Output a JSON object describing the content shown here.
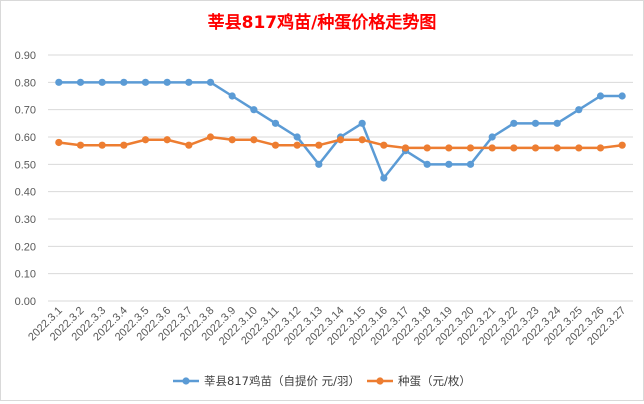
{
  "chart_data": {
    "type": "line",
    "title": "莘县817鸡苗/种蛋价格走势图",
    "title_color": "#ff0000",
    "xlabel": "",
    "ylabel": "",
    "ylim": [
      0,
      0.9
    ],
    "y_ticks": [
      "0.00",
      "0.10",
      "0.20",
      "0.30",
      "0.40",
      "0.50",
      "0.60",
      "0.70",
      "0.80",
      "0.90"
    ],
    "grid": true,
    "legend_position": "bottom",
    "categories": [
      "2022.3.1",
      "2022.3.2",
      "2022.3.3",
      "2022.3.4",
      "2022.3.5",
      "2022.3.6",
      "2022.3.7",
      "2022.3.8",
      "2022.3.9",
      "2022.3.10",
      "2022.3.11",
      "2022.3.12",
      "2022.3.13",
      "2022.3.14",
      "2022.3.15",
      "2022.3.16",
      "2022.3.17",
      "2022.3.18",
      "2022.3.19",
      "2022.3.20",
      "2022.3.21",
      "2022.3.22",
      "2022.3.23",
      "2022.3.24",
      "2022.3.25",
      "2022.3.26",
      "2022.3.27"
    ],
    "series": [
      {
        "name": "莘县817鸡苗（自提价 元/羽）",
        "color": "#5b9bd5",
        "values": [
          0.8,
          0.8,
          0.8,
          0.8,
          0.8,
          0.8,
          0.8,
          0.8,
          0.75,
          0.7,
          0.65,
          0.6,
          0.5,
          0.6,
          0.65,
          0.45,
          0.55,
          0.5,
          0.5,
          0.5,
          0.6,
          0.65,
          0.65,
          0.65,
          0.7,
          0.75,
          0.75
        ]
      },
      {
        "name": "种蛋（元/枚）",
        "color": "#ed7d31",
        "values": [
          0.58,
          0.57,
          0.57,
          0.57,
          0.59,
          0.59,
          0.57,
          0.6,
          0.59,
          0.59,
          0.57,
          0.57,
          0.57,
          0.59,
          0.59,
          0.57,
          0.56,
          0.56,
          0.56,
          0.56,
          0.56,
          0.56,
          0.56,
          0.56,
          0.56,
          0.56,
          0.57
        ]
      }
    ]
  }
}
